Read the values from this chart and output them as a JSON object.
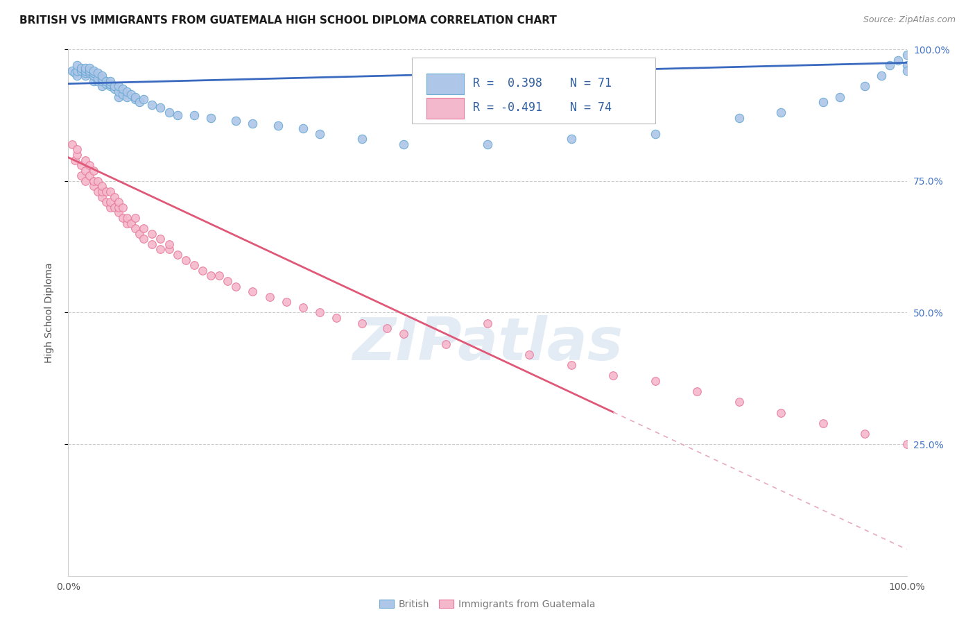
{
  "title": "BRITISH VS IMMIGRANTS FROM GUATEMALA HIGH SCHOOL DIPLOMA CORRELATION CHART",
  "source": "Source: ZipAtlas.com",
  "ylabel": "High School Diploma",
  "x_min": 0.0,
  "x_max": 1.0,
  "y_min": 0.0,
  "y_max": 1.0,
  "y_ticks": [
    0.25,
    0.5,
    0.75,
    1.0
  ],
  "y_tick_labels_right": [
    "25.0%",
    "50.0%",
    "75.0%",
    "100.0%"
  ],
  "x_tick_labels": [
    "0.0%",
    "100.0%"
  ],
  "british_color": "#aec6e8",
  "british_edge_color": "#6aaad4",
  "guatemala_color": "#f4b8cc",
  "guatemala_edge_color": "#e8799a",
  "trendline_british_color": "#3a6abf",
  "trendline_guatemala_color": "#e05878",
  "trendline_dashed_color": "#e8aabe",
  "watermark": "ZIPatlas",
  "british_x": [
    0.005,
    0.008,
    0.01,
    0.01,
    0.01,
    0.015,
    0.015,
    0.02,
    0.02,
    0.02,
    0.02,
    0.025,
    0.025,
    0.025,
    0.03,
    0.03,
    0.03,
    0.03,
    0.035,
    0.035,
    0.035,
    0.04,
    0.04,
    0.04,
    0.04,
    0.045,
    0.045,
    0.05,
    0.05,
    0.05,
    0.055,
    0.055,
    0.06,
    0.06,
    0.06,
    0.065,
    0.065,
    0.07,
    0.07,
    0.075,
    0.08,
    0.08,
    0.085,
    0.09,
    0.1,
    0.11,
    0.12,
    0.13,
    0.15,
    0.17,
    0.2,
    0.22,
    0.25,
    0.28,
    0.3,
    0.35,
    0.4,
    0.5,
    0.6,
    0.7,
    0.8,
    0.85,
    0.9,
    0.92,
    0.95,
    0.97,
    0.98,
    0.99,
    1.0,
    1.0,
    1.0
  ],
  "british_y": [
    0.96,
    0.955,
    0.95,
    0.96,
    0.97,
    0.96,
    0.965,
    0.95,
    0.955,
    0.96,
    0.965,
    0.955,
    0.96,
    0.965,
    0.94,
    0.95,
    0.955,
    0.96,
    0.94,
    0.945,
    0.955,
    0.93,
    0.94,
    0.945,
    0.95,
    0.935,
    0.94,
    0.93,
    0.935,
    0.94,
    0.925,
    0.93,
    0.91,
    0.92,
    0.93,
    0.915,
    0.925,
    0.91,
    0.92,
    0.915,
    0.905,
    0.91,
    0.9,
    0.905,
    0.895,
    0.89,
    0.88,
    0.875,
    0.875,
    0.87,
    0.865,
    0.86,
    0.855,
    0.85,
    0.84,
    0.83,
    0.82,
    0.82,
    0.83,
    0.84,
    0.87,
    0.88,
    0.9,
    0.91,
    0.93,
    0.95,
    0.97,
    0.98,
    0.97,
    0.96,
    0.99
  ],
  "guatemala_x": [
    0.005,
    0.008,
    0.01,
    0.01,
    0.015,
    0.015,
    0.02,
    0.02,
    0.02,
    0.025,
    0.025,
    0.03,
    0.03,
    0.03,
    0.035,
    0.035,
    0.04,
    0.04,
    0.04,
    0.045,
    0.045,
    0.05,
    0.05,
    0.05,
    0.055,
    0.055,
    0.06,
    0.06,
    0.06,
    0.065,
    0.065,
    0.07,
    0.07,
    0.075,
    0.08,
    0.08,
    0.085,
    0.09,
    0.09,
    0.1,
    0.1,
    0.11,
    0.11,
    0.12,
    0.12,
    0.13,
    0.14,
    0.15,
    0.16,
    0.17,
    0.18,
    0.19,
    0.2,
    0.22,
    0.24,
    0.26,
    0.28,
    0.3,
    0.32,
    0.35,
    0.38,
    0.4,
    0.45,
    0.5,
    0.55,
    0.6,
    0.65,
    0.7,
    0.75,
    0.8,
    0.85,
    0.9,
    0.95,
    1.0
  ],
  "guatemala_y": [
    0.82,
    0.79,
    0.8,
    0.81,
    0.78,
    0.76,
    0.77,
    0.79,
    0.75,
    0.76,
    0.78,
    0.74,
    0.75,
    0.77,
    0.73,
    0.75,
    0.72,
    0.73,
    0.74,
    0.71,
    0.73,
    0.7,
    0.71,
    0.73,
    0.7,
    0.72,
    0.69,
    0.7,
    0.71,
    0.68,
    0.7,
    0.67,
    0.68,
    0.67,
    0.66,
    0.68,
    0.65,
    0.64,
    0.66,
    0.63,
    0.65,
    0.62,
    0.64,
    0.62,
    0.63,
    0.61,
    0.6,
    0.59,
    0.58,
    0.57,
    0.57,
    0.56,
    0.55,
    0.54,
    0.53,
    0.52,
    0.51,
    0.5,
    0.49,
    0.48,
    0.47,
    0.46,
    0.44,
    0.48,
    0.42,
    0.4,
    0.38,
    0.37,
    0.35,
    0.33,
    0.31,
    0.29,
    0.27,
    0.25
  ],
  "marker_size_british": 80,
  "marker_size_guatemala": 70,
  "title_fontsize": 11,
  "axis_label_fontsize": 10,
  "tick_fontsize": 10,
  "legend_fontsize": 12
}
